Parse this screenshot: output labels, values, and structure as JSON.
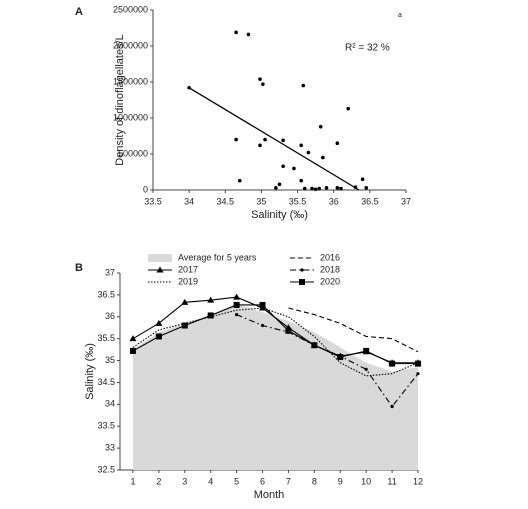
{
  "chart_data": [
    {
      "type": "scatter",
      "panel_label": "A",
      "corner_label": "a",
      "annotation": "R² = 32 %",
      "xlabel": "Salinity (‰)",
      "ylabel": "Density of dinoflagellates/L",
      "x": [
        34.0,
        34.65,
        34.7,
        34.65,
        34.82,
        34.98,
        35.02,
        34.98,
        35.05,
        35.2,
        35.25,
        35.3,
        35.3,
        35.45,
        35.58,
        35.55,
        35.65,
        35.55,
        35.6,
        35.7,
        35.75,
        35.82,
        35.85,
        35.8,
        35.9,
        36.05,
        36.05,
        36.1,
        36.2,
        36.3,
        36.4,
        36.45
      ],
      "values": [
        1420000,
        700000,
        130000,
        2190000,
        2160000,
        1540000,
        1470000,
        620000,
        700000,
        30000,
        80000,
        690000,
        330000,
        300000,
        1450000,
        620000,
        520000,
        130000,
        20000,
        20000,
        10000,
        880000,
        450000,
        20000,
        30000,
        650000,
        30000,
        20000,
        1130000,
        40000,
        150000,
        30000
      ],
      "color": "#000000",
      "trendline": {
        "x": [
          34.0,
          36.35
        ],
        "values": [
          1420000,
          0
        ]
      },
      "xlim": [
        33.5,
        37
      ],
      "xticks": [
        33.5,
        34,
        34.5,
        35,
        35.5,
        36,
        36.5,
        37
      ],
      "ylim": [
        0,
        2500000
      ],
      "yticks": [
        0,
        500000,
        1000000,
        1500000,
        2000000,
        2500000
      ]
    },
    {
      "type": "line",
      "panel_label": "B",
      "xlabel": "Month",
      "ylabel": "Salinity (‰)",
      "x": [
        1,
        2,
        3,
        4,
        5,
        6,
        7,
        8,
        9,
        10,
        11,
        12
      ],
      "xlim": [
        0.5,
        12
      ],
      "xticks": [
        1,
        2,
        3,
        4,
        5,
        6,
        7,
        8,
        9,
        10,
        11,
        12
      ],
      "ylim": [
        32.5,
        37
      ],
      "yticks": [
        32.5,
        33,
        33.5,
        34,
        34.5,
        35,
        35.5,
        36,
        36.5,
        37
      ],
      "series": [
        {
          "name": "Average for 5 years",
          "style": "area",
          "color": "#d9d9d9",
          "values": [
            35.25,
            35.65,
            35.85,
            36.05,
            36.3,
            36.1,
            35.9,
            35.65,
            35.3,
            34.95,
            34.75,
            34.85
          ]
        },
        {
          "name": "2016",
          "style": "dashed",
          "color": "#000000",
          "values": [
            null,
            null,
            null,
            null,
            null,
            null,
            36.2,
            36.05,
            35.85,
            35.55,
            35.5,
            35.2
          ]
        },
        {
          "name": "2017",
          "style": "solid",
          "marker": "triangle",
          "color": "#000000",
          "values": [
            35.5,
            35.85,
            36.33,
            36.38,
            36.45,
            36.2,
            35.75,
            35.35,
            35.1,
            35.2,
            34.95,
            34.95
          ]
        },
        {
          "name": "2018",
          "style": "dashdot",
          "marker": "dot",
          "color": "#000000",
          "values": [
            null,
            null,
            null,
            null,
            36.05,
            35.8,
            35.65,
            35.35,
            35.1,
            34.8,
            33.95,
            34.7
          ]
        },
        {
          "name": "2019",
          "style": "dotted",
          "color": "#000000",
          "values": [
            35.3,
            35.7,
            35.85,
            36.0,
            36.15,
            36.2,
            36.0,
            35.55,
            34.95,
            34.65,
            34.7,
            34.95
          ]
        },
        {
          "name": "2020",
          "style": "solid",
          "marker": "square",
          "color": "#000000",
          "values": [
            35.22,
            35.55,
            35.8,
            36.03,
            36.27,
            36.27,
            35.68,
            35.35,
            35.08,
            35.22,
            34.93,
            34.93
          ]
        }
      ]
    }
  ]
}
